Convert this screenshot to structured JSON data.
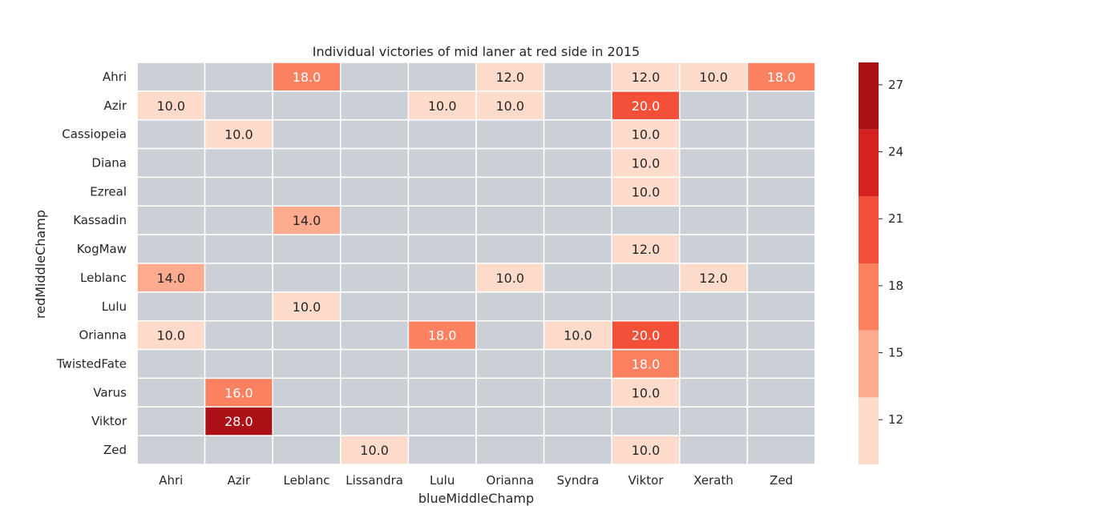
{
  "chart_data": {
    "type": "heatmap",
    "title": "Individual victories of mid laner at red side in 2015",
    "xlabel": "blueMiddleChamp",
    "ylabel": "redMiddleChamp",
    "x_categories": [
      "Ahri",
      "Azir",
      "Leblanc",
      "Lissandra",
      "Lulu",
      "Orianna",
      "Syndra",
      "Viktor",
      "Xerath",
      "Zed"
    ],
    "y_categories": [
      "Ahri",
      "Azir",
      "Cassiopeia",
      "Diana",
      "Ezreal",
      "Kassadin",
      "KogMaw",
      "Leblanc",
      "Lulu",
      "Orianna",
      "TwistedFate",
      "Varus",
      "Viktor",
      "Zed"
    ],
    "cells": [
      {
        "row": "Ahri",
        "col": "Leblanc",
        "value": 18.0,
        "label": "18.0"
      },
      {
        "row": "Ahri",
        "col": "Orianna",
        "value": 12.0,
        "label": "12.0"
      },
      {
        "row": "Ahri",
        "col": "Viktor",
        "value": 12.0,
        "label": "12.0"
      },
      {
        "row": "Ahri",
        "col": "Xerath",
        "value": 10.0,
        "label": "10.0"
      },
      {
        "row": "Ahri",
        "col": "Zed",
        "value": 18.0,
        "label": "18.0"
      },
      {
        "row": "Azir",
        "col": "Ahri",
        "value": 10.0,
        "label": "10.0"
      },
      {
        "row": "Azir",
        "col": "Lulu",
        "value": 10.0,
        "label": "10.0"
      },
      {
        "row": "Azir",
        "col": "Orianna",
        "value": 10.0,
        "label": "10.0"
      },
      {
        "row": "Azir",
        "col": "Viktor",
        "value": 20.0,
        "label": "20.0"
      },
      {
        "row": "Cassiopeia",
        "col": "Azir",
        "value": 10.0,
        "label": "10.0"
      },
      {
        "row": "Cassiopeia",
        "col": "Viktor",
        "value": 10.0,
        "label": "10.0"
      },
      {
        "row": "Diana",
        "col": "Viktor",
        "value": 10.0,
        "label": "10.0"
      },
      {
        "row": "Ezreal",
        "col": "Viktor",
        "value": 10.0,
        "label": "10.0"
      },
      {
        "row": "Kassadin",
        "col": "Leblanc",
        "value": 14.0,
        "label": "14.0"
      },
      {
        "row": "KogMaw",
        "col": "Viktor",
        "value": 12.0,
        "label": "12.0"
      },
      {
        "row": "Leblanc",
        "col": "Ahri",
        "value": 14.0,
        "label": "14.0"
      },
      {
        "row": "Leblanc",
        "col": "Orianna",
        "value": 10.0,
        "label": "10.0"
      },
      {
        "row": "Leblanc",
        "col": "Xerath",
        "value": 12.0,
        "label": "12.0"
      },
      {
        "row": "Lulu",
        "col": "Leblanc",
        "value": 10.0,
        "label": "10.0"
      },
      {
        "row": "Orianna",
        "col": "Ahri",
        "value": 10.0,
        "label": "10.0"
      },
      {
        "row": "Orianna",
        "col": "Lulu",
        "value": 18.0,
        "label": "18.0"
      },
      {
        "row": "Orianna",
        "col": "Syndra",
        "value": 10.0,
        "label": "10.0"
      },
      {
        "row": "Orianna",
        "col": "Viktor",
        "value": 20.0,
        "label": "20.0"
      },
      {
        "row": "TwistedFate",
        "col": "Viktor",
        "value": 18.0,
        "label": "18.0"
      },
      {
        "row": "Varus",
        "col": "Azir",
        "value": 16.0,
        "label": "16.0"
      },
      {
        "row": "Varus",
        "col": "Viktor",
        "value": 10.0,
        "label": "10.0"
      },
      {
        "row": "Viktor",
        "col": "Azir",
        "value": 28.0,
        "label": "28.0"
      },
      {
        "row": "Zed",
        "col": "Lissandra",
        "value": 10.0,
        "label": "10.0"
      },
      {
        "row": "Zed",
        "col": "Viktor",
        "value": 10.0,
        "label": "10.0"
      }
    ],
    "missing_color": "#cbcfd6",
    "colorbar": {
      "range": [
        10,
        28
      ],
      "ticks": [
        12,
        15,
        18,
        21,
        24,
        27
      ],
      "bins": [
        {
          "min": 10,
          "max": 13,
          "color": "#fddbcb"
        },
        {
          "min": 13,
          "max": 16,
          "color": "#fcab8f"
        },
        {
          "min": 16,
          "max": 19,
          "color": "#fc8161"
        },
        {
          "min": 19,
          "max": 22,
          "color": "#f44f39"
        },
        {
          "min": 22,
          "max": 25,
          "color": "#d52221"
        },
        {
          "min": 25,
          "max": 28,
          "color": "#aa1016"
        }
      ]
    }
  }
}
